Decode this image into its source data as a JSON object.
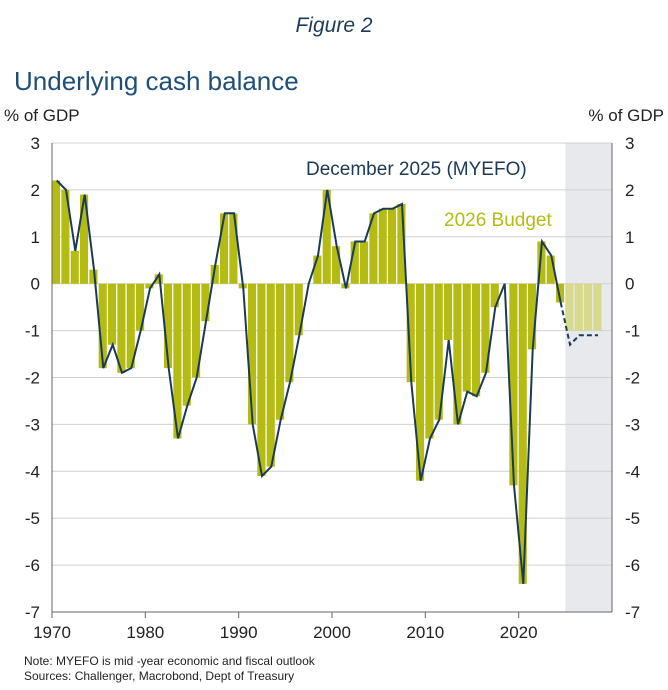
{
  "figure_label": "Figure 2",
  "notes": {
    "line1": "Note: MYEFO is mid -year economic and fiscal outlook",
    "line2": "Sources: Challenger, Macrobond, Dept of Treasury"
  },
  "colors": {
    "bars": "#b4bb12",
    "bars_forecast": "#d7da8a",
    "line": "#1b3a57",
    "forecast_shade": "#e8e9ec",
    "grid": "#d0d0d0"
  },
  "chart_data": {
    "type": "bar",
    "title": "Underlying cash balance",
    "ylabel_left": "% of GDP",
    "ylabel_right": "% of GDP",
    "xlim": [
      1970,
      2030
    ],
    "ylim": [
      -7,
      3
    ],
    "yticks": [
      3,
      2,
      1,
      0,
      -1,
      -2,
      -3,
      -4,
      -5,
      -6,
      -7
    ],
    "xticks": [
      1970,
      1980,
      1990,
      2000,
      2010,
      2020
    ],
    "forecast_start": 2025,
    "series": [
      {
        "name": "2026 Budget",
        "kind": "bar",
        "x": [
          1970,
          1971,
          1972,
          1973,
          1974,
          1975,
          1976,
          1977,
          1978,
          1979,
          1980,
          1981,
          1982,
          1983,
          1984,
          1985,
          1986,
          1987,
          1988,
          1989,
          1990,
          1991,
          1992,
          1993,
          1994,
          1995,
          1996,
          1997,
          1998,
          1999,
          2000,
          2001,
          2002,
          2003,
          2004,
          2005,
          2006,
          2007,
          2008,
          2009,
          2010,
          2011,
          2012,
          2013,
          2014,
          2015,
          2016,
          2017,
          2018,
          2019,
          2020,
          2021,
          2022,
          2023,
          2024,
          2025,
          2026,
          2027,
          2028
        ],
        "values": [
          2.2,
          2.0,
          0.7,
          1.9,
          0.3,
          -1.8,
          -1.3,
          -1.9,
          -1.8,
          -1.0,
          -0.1,
          0.2,
          -1.8,
          -3.3,
          -2.6,
          -2.0,
          -0.8,
          0.4,
          1.5,
          1.5,
          -0.1,
          -3.0,
          -4.1,
          -3.9,
          -2.9,
          -2.1,
          -1.1,
          0.0,
          0.6,
          2.0,
          0.8,
          -0.1,
          0.9,
          0.9,
          1.5,
          1.6,
          1.6,
          1.7,
          -2.1,
          -4.2,
          -3.3,
          -2.9,
          -1.2,
          -3.0,
          -2.3,
          -2.4,
          -1.9,
          -0.5,
          0.0,
          -4.3,
          -6.4,
          -1.4,
          0.9,
          0.6,
          -0.4,
          -1.0,
          -1.0,
          -1.0,
          -1.0
        ]
      },
      {
        "name": "December 2025 (MYEFO)",
        "kind": "line",
        "x": [
          1970,
          1971,
          1972,
          1973,
          1974,
          1975,
          1976,
          1977,
          1978,
          1979,
          1980,
          1981,
          1982,
          1983,
          1984,
          1985,
          1986,
          1987,
          1988,
          1989,
          1990,
          1991,
          1992,
          1993,
          1994,
          1995,
          1996,
          1997,
          1998,
          1999,
          2000,
          2001,
          2002,
          2003,
          2004,
          2005,
          2006,
          2007,
          2008,
          2009,
          2010,
          2011,
          2012,
          2013,
          2014,
          2015,
          2016,
          2017,
          2018,
          2019,
          2020,
          2021,
          2022,
          2023,
          2024
        ],
        "values": [
          2.2,
          2.0,
          0.7,
          1.9,
          0.3,
          -1.8,
          -1.3,
          -1.9,
          -1.8,
          -1.0,
          -0.1,
          0.2,
          -1.8,
          -3.3,
          -2.6,
          -2.0,
          -0.8,
          0.4,
          1.5,
          1.5,
          -0.1,
          -3.0,
          -4.1,
          -3.9,
          -2.9,
          -2.1,
          -1.1,
          0.0,
          0.6,
          2.0,
          0.8,
          -0.1,
          0.9,
          0.9,
          1.5,
          1.6,
          1.6,
          1.7,
          -2.1,
          -4.2,
          -3.3,
          -2.9,
          -1.2,
          -3.0,
          -2.3,
          -2.4,
          -1.9,
          -0.5,
          0.0,
          -4.3,
          -6.4,
          -1.4,
          0.9,
          0.6,
          -0.4
        ],
        "forecast_x": [
          2024,
          2025,
          2026,
          2027,
          2028
        ],
        "forecast_values": [
          -0.4,
          -1.3,
          -1.1,
          -1.1,
          -1.1
        ]
      }
    ]
  }
}
